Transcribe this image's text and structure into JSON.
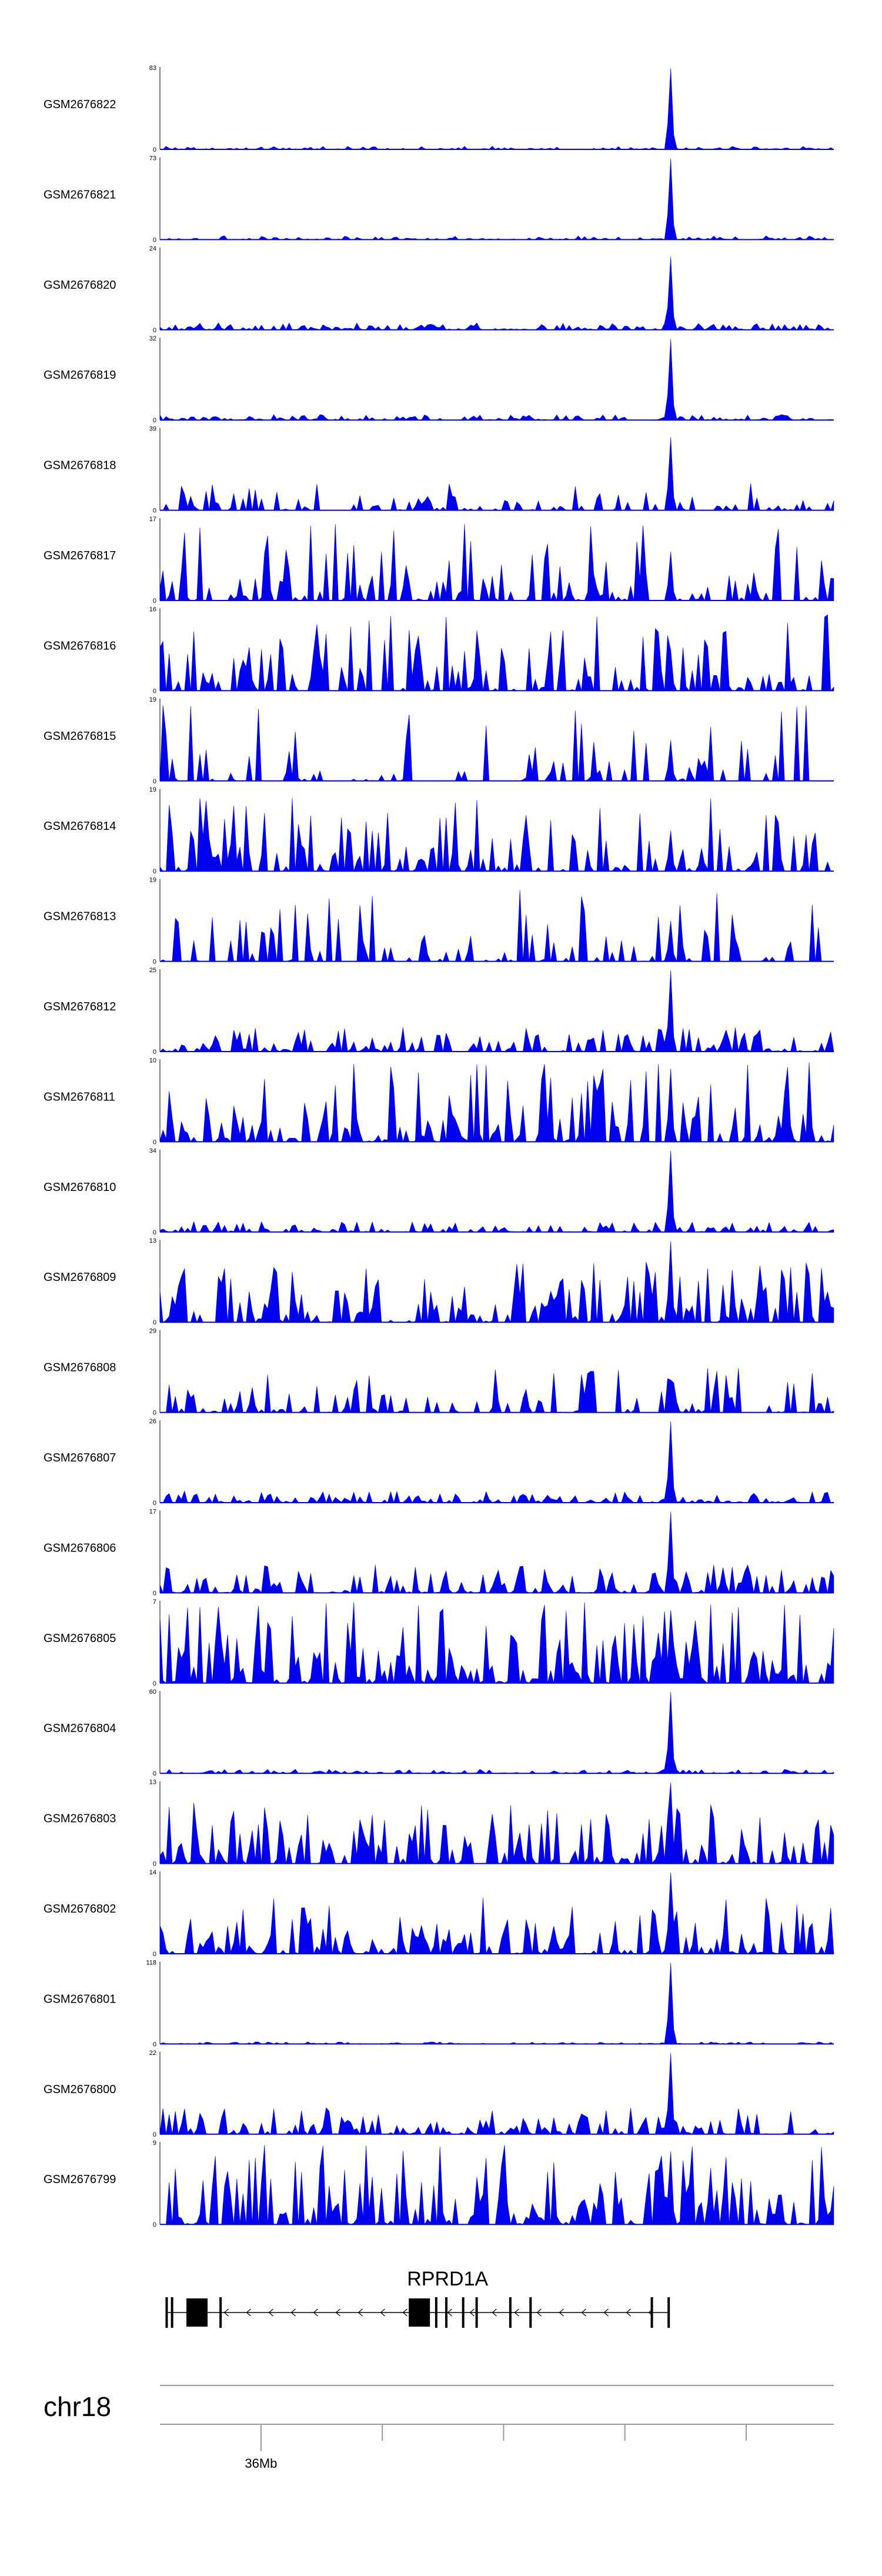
{
  "chart_data": {
    "type": "area",
    "colors": {
      "signal": "#0000ee",
      "axis": "#000000",
      "gene": "#000000",
      "ruler": "#999999"
    },
    "tracks": [
      {
        "label": "GSM2676822",
        "ymax": "83",
        "ymin": "0",
        "max": 83,
        "profile": "peak",
        "noise": 0.06,
        "gap": 0.05,
        "peak_scale": 1.0
      },
      {
        "label": "GSM2676821",
        "ymax": "73",
        "ymin": "0",
        "max": 73,
        "profile": "peak",
        "noise": 0.07,
        "gap": 0.05,
        "peak_scale": 1.0
      },
      {
        "label": "GSM2676820",
        "ymax": "24",
        "ymin": "0",
        "max": 24,
        "profile": "peak",
        "noise": 0.14,
        "gap": 0.05,
        "peak_scale": 0.9
      },
      {
        "label": "GSM2676819",
        "ymax": "32",
        "ymin": "0",
        "max": 32,
        "profile": "peak",
        "noise": 0.1,
        "gap": 0.05,
        "peak_scale": 1.0
      },
      {
        "label": "GSM2676818",
        "ymax": "39",
        "ymin": "0",
        "max": 39,
        "profile": "sparse",
        "noise": 0.35,
        "gap": 0.45,
        "peak_scale": 0.9
      },
      {
        "label": "GSM2676817",
        "ymax": "17",
        "ymin": "0",
        "max": 17,
        "profile": "sparse",
        "noise": 1.0,
        "gap": 0.4,
        "peak_scale": 0.6
      },
      {
        "label": "GSM2676816",
        "ymax": "16",
        "ymin": "0",
        "max": 16,
        "profile": "sparse",
        "noise": 1.0,
        "gap": 0.45,
        "peak_scale": 0.5
      },
      {
        "label": "GSM2676815",
        "ymax": "19",
        "ymin": "0",
        "max": 19,
        "profile": "sparse",
        "noise": 1.0,
        "gap": 0.55,
        "peak_scale": 0.5
      },
      {
        "label": "GSM2676814",
        "ymax": "19",
        "ymin": "0",
        "max": 19,
        "profile": "dense",
        "noise": 0.9,
        "gap": 0.25,
        "peak_scale": 0.5
      },
      {
        "label": "GSM2676813",
        "ymax": "19",
        "ymin": "0",
        "max": 19,
        "profile": "sparse",
        "noise": 1.0,
        "gap": 0.5,
        "peak_scale": 0.5
      },
      {
        "label": "GSM2676812",
        "ymax": "25",
        "ymin": "0",
        "max": 25,
        "profile": "peak",
        "noise": 0.45,
        "gap": 0.2,
        "peak_scale": 1.0
      },
      {
        "label": "GSM2676811",
        "ymax": "10",
        "ymin": "0",
        "max": 10,
        "profile": "dense",
        "noise": 1.0,
        "gap": 0.15,
        "peak_scale": 0.9
      },
      {
        "label": "GSM2676810",
        "ymax": "34",
        "ymin": "0",
        "max": 34,
        "profile": "peak",
        "noise": 0.2,
        "gap": 0.08,
        "peak_scale": 1.0
      },
      {
        "label": "GSM2676809",
        "ymax": "13",
        "ymin": "0",
        "max": 13,
        "profile": "dense",
        "noise": 0.75,
        "gap": 0.15,
        "peak_scale": 1.0
      },
      {
        "label": "GSM2676808",
        "ymax": "29",
        "ymin": "0",
        "max": 29,
        "profile": "sparse",
        "noise": 0.6,
        "gap": 0.4,
        "peak_scale": 0.4
      },
      {
        "label": "GSM2676807",
        "ymax": "26",
        "ymin": "0",
        "max": 26,
        "profile": "peak",
        "noise": 0.22,
        "gap": 0.08,
        "peak_scale": 1.0
      },
      {
        "label": "GSM2676806",
        "ymax": "17",
        "ymin": "0",
        "max": 17,
        "profile": "peak",
        "noise": 0.55,
        "gap": 0.2,
        "peak_scale": 1.0
      },
      {
        "label": "GSM2676805",
        "ymax": "7",
        "ymin": "0",
        "max": 7,
        "profile": "dense",
        "noise": 1.0,
        "gap": 0.05,
        "peak_scale": 0.9
      },
      {
        "label": "GSM2676804",
        "ymax": "60",
        "ymin": "0",
        "max": 60,
        "profile": "peak",
        "noise": 0.08,
        "gap": 0.05,
        "peak_scale": 1.0
      },
      {
        "label": "GSM2676803",
        "ymax": "13",
        "ymin": "0",
        "max": 13,
        "profile": "dense",
        "noise": 0.75,
        "gap": 0.15,
        "peak_scale": 1.0
      },
      {
        "label": "GSM2676802",
        "ymax": "14",
        "ymin": "0",
        "max": 14,
        "profile": "dense",
        "noise": 0.7,
        "gap": 0.15,
        "peak_scale": 1.0
      },
      {
        "label": "GSM2676801",
        "ymax": "118",
        "ymin": "0",
        "max": 118,
        "profile": "peak",
        "noise": 0.04,
        "gap": 0.05,
        "peak_scale": 1.0
      },
      {
        "label": "GSM2676800",
        "ymax": "22",
        "ymin": "0",
        "max": 22,
        "profile": "peak",
        "noise": 0.5,
        "gap": 0.2,
        "peak_scale": 1.0
      },
      {
        "label": "GSM2676799",
        "ymax": "9",
        "ymin": "0",
        "max": 9,
        "profile": "dense",
        "noise": 1.0,
        "gap": 0.15,
        "peak_scale": 0.9
      }
    ],
    "peak_position": 0.757,
    "gene": {
      "name": "RPRD1A",
      "strand": "-",
      "exons": [
        {
          "pos": 0.01,
          "kind": "line"
        },
        {
          "pos": 0.018,
          "kind": "line"
        },
        {
          "pos": 0.055,
          "kind": "block"
        },
        {
          "pos": 0.09,
          "kind": "line"
        },
        {
          "pos": 0.385,
          "kind": "block"
        },
        {
          "pos": 0.41,
          "kind": "line"
        },
        {
          "pos": 0.425,
          "kind": "line"
        },
        {
          "pos": 0.45,
          "kind": "line"
        },
        {
          "pos": 0.47,
          "kind": "line"
        },
        {
          "pos": 0.52,
          "kind": "line"
        },
        {
          "pos": 0.55,
          "kind": "line"
        },
        {
          "pos": 0.73,
          "kind": "line"
        },
        {
          "pos": 0.755,
          "kind": "line"
        }
      ]
    },
    "chromosome": "chr18",
    "ticks": [
      {
        "pos": 0.15,
        "label": "36Mb"
      },
      {
        "pos": 0.33,
        "label": ""
      },
      {
        "pos": 0.51,
        "label": ""
      },
      {
        "pos": 0.69,
        "label": ""
      },
      {
        "pos": 0.87,
        "label": ""
      }
    ]
  }
}
